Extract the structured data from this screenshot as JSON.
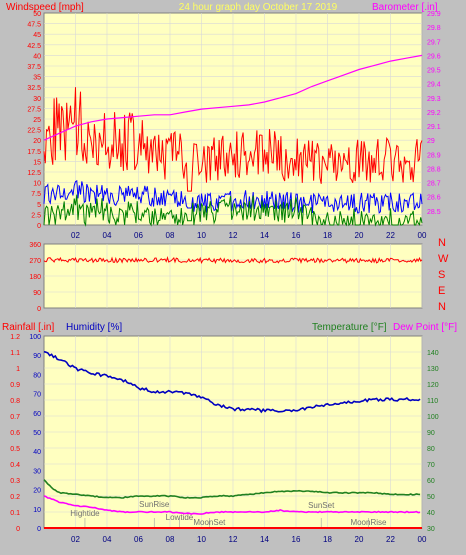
{
  "header": {
    "wind_label": "Windspeed [mph]",
    "center_title": "24 hour graph day   October 17 2019",
    "baro_label": "Barometer [.in]"
  },
  "colors": {
    "plot_bg": "#ffffc0",
    "grid": "#d8d8d8",
    "wind_gust": "#ff0000",
    "wind_avg": "#0000ff",
    "wind_low": "#008000",
    "barometer": "#ff00ff",
    "wind_dir": "#ff0000",
    "humidity": "#0000c0",
    "temperature": "#208020",
    "dewpoint": "#ff00ff",
    "rainfall": "#ff0000",
    "title_yellow": "#ffff60",
    "chart_text": "#ff0000",
    "tick_text": "#000080"
  },
  "chart_data": [
    {
      "id": "wind_baro",
      "type": "line",
      "title": "24 hour graph day   October 17 2019",
      "xlabel": "",
      "ylabel": "Windspeed [mph]",
      "y2label": "Barometer [.in]",
      "xlim": [
        0,
        24
      ],
      "ylim": [
        0,
        50
      ],
      "y2lim": [
        28.4,
        29.9
      ],
      "grid": true,
      "x_tick_labels": [
        "02",
        "04",
        "06",
        "08",
        "10",
        "12",
        "14",
        "16",
        "18",
        "20",
        "22",
        "00"
      ],
      "y_tick_labels": [
        "0",
        "2.5",
        "5",
        "7.5",
        "10",
        "12.5",
        "15",
        "17.5",
        "20",
        "22.5",
        "25",
        "27.5",
        "30",
        "32.5",
        "35",
        "37.5",
        "40",
        "42.5",
        "45",
        "47.5",
        "50"
      ],
      "y2_tick_labels": [
        "28.5",
        "28.6",
        "28.7",
        "28.8",
        "28.9",
        "29",
        "29.1",
        "29.2",
        "29.3",
        "29.4",
        "29.5",
        "29.6",
        "29.7",
        "29.8",
        "29.9"
      ],
      "series": [
        {
          "name": "Windspeed",
          "points": [
            [
              0,
              20
            ],
            [
              2,
              22
            ],
            [
              4,
              18
            ],
            [
              6,
              19
            ],
            [
              8,
              15
            ],
            [
              10,
              14
            ],
            [
              12,
              15
            ],
            [
              14,
              16
            ],
            [
              16,
              14
            ],
            [
              18,
              13
            ],
            [
              20,
              14
            ],
            [
              22,
              14
            ],
            [
              24,
              14
            ]
          ]
        },
        {
          "name": "Barometer",
          "points": [
            [
              0,
              29.0
            ],
            [
              1,
              29.05
            ],
            [
              2,
              29.1
            ],
            [
              3,
              29.13
            ],
            [
              4,
              29.15
            ],
            [
              5,
              29.16
            ],
            [
              6,
              29.17
            ],
            [
              7,
              29.18
            ],
            [
              8,
              29.18
            ],
            [
              9,
              29.2
            ],
            [
              10,
              29.22
            ],
            [
              11,
              29.23
            ],
            [
              12,
              29.24
            ],
            [
              13,
              29.25
            ],
            [
              14,
              29.27
            ],
            [
              15,
              29.3
            ],
            [
              16,
              29.33
            ],
            [
              17,
              29.38
            ],
            [
              18,
              29.42
            ],
            [
              19,
              29.46
            ],
            [
              20,
              29.5
            ],
            [
              21,
              29.53
            ],
            [
              22,
              29.56
            ],
            [
              23,
              29.58
            ],
            [
              24,
              29.6
            ]
          ]
        }
      ]
    },
    {
      "id": "wind_direction",
      "type": "line",
      "xlim": [
        0,
        24
      ],
      "ylim": [
        0,
        360
      ],
      "grid": true,
      "x_tick_labels": [
        "02",
        "04",
        "06",
        "08",
        "10",
        "12",
        "14",
        "16",
        "18",
        "20",
        "22",
        "00"
      ],
      "y_tick_labels": [
        "0",
        "90",
        "180",
        "270",
        "360"
      ],
      "compass_labels": [
        "N",
        "W",
        "S",
        "E",
        "N"
      ],
      "series": [
        {
          "points": [
            [
              0,
              270
            ],
            [
              4,
              268
            ],
            [
              8,
              270
            ],
            [
              12,
              266
            ],
            [
              16,
              268
            ],
            [
              20,
              266
            ],
            [
              24,
              268
            ]
          ]
        }
      ]
    },
    {
      "id": "temp_hum",
      "type": "line",
      "xlim": [
        0,
        24
      ],
      "grid": true,
      "rain_label": "Rainfall [.in]",
      "humidity_label": "Humidity [%]",
      "temp_label": "Temperature [°F]",
      "dewpoint_label": "Dew Point [°F]",
      "rain_ylim": [
        0,
        1.2
      ],
      "humidity_ylim": [
        0,
        100
      ],
      "temp_ylim": [
        30,
        150
      ],
      "x_tick_labels": [
        "02",
        "04",
        "06",
        "08",
        "10",
        "12",
        "14",
        "16",
        "18",
        "20",
        "22",
        "00"
      ],
      "rain_tick_labels": [
        "0",
        "0.1",
        "0.2",
        "0.3",
        "0.4",
        "0.5",
        "0.6",
        "0.7",
        "0.8",
        "0.9",
        "1",
        "1.1",
        "1.2"
      ],
      "humidity_tick_labels": [
        "0",
        "10",
        "20",
        "30",
        "40",
        "50",
        "60",
        "70",
        "80",
        "90",
        "100"
      ],
      "temp_tick_labels": [
        "30",
        "40",
        "50",
        "60",
        "70",
        "80",
        "90",
        "100",
        "110",
        "120",
        "130",
        "140"
      ],
      "events": [
        {
          "label": "Hightide",
          "x": 2.6
        },
        {
          "label": "SunRise",
          "x": 7.0
        },
        {
          "label": "Lowtide",
          "x": 8.6
        },
        {
          "label": "MoonSet",
          "x": 10.5
        },
        {
          "label": "SunSet",
          "x": 17.6
        },
        {
          "label": "MoonRise",
          "x": 20.6
        }
      ],
      "series": [
        {
          "name": "Humidity [%]",
          "axis": "humidity",
          "points": [
            [
              0,
              92
            ],
            [
              1,
              88
            ],
            [
              2,
              83
            ],
            [
              3,
              81
            ],
            [
              4,
              79
            ],
            [
              5,
              77
            ],
            [
              6,
              73
            ],
            [
              7,
              71
            ],
            [
              8,
              71
            ],
            [
              9,
              70
            ],
            [
              10,
              68
            ],
            [
              11,
              64
            ],
            [
              12,
              62
            ],
            [
              13,
              62
            ],
            [
              14,
              61
            ],
            [
              15,
              61
            ],
            [
              16,
              61
            ],
            [
              17,
              63
            ],
            [
              18,
              64
            ],
            [
              19,
              65
            ],
            [
              20,
              66
            ],
            [
              21,
              67
            ],
            [
              22,
              67
            ],
            [
              23,
              67
            ],
            [
              24,
              67
            ]
          ]
        },
        {
          "name": "Temperature [°F]",
          "axis": "temp",
          "points": [
            [
              0,
              60
            ],
            [
              0.5,
              55
            ],
            [
              1,
              52
            ],
            [
              2,
              51
            ],
            [
              3,
              50
            ],
            [
              4,
              49
            ],
            [
              5,
              49
            ],
            [
              6,
              50
            ],
            [
              7,
              50
            ],
            [
              8,
              50
            ],
            [
              9,
              49
            ],
            [
              10,
              49
            ],
            [
              11,
              50
            ],
            [
              12,
              50
            ],
            [
              13,
              51
            ],
            [
              14,
              52
            ],
            [
              15,
              53
            ],
            [
              16,
              53
            ],
            [
              17,
              53
            ],
            [
              18,
              52
            ],
            [
              19,
              52
            ],
            [
              20,
              52
            ],
            [
              21,
              52
            ],
            [
              22,
              51
            ],
            [
              24,
              51
            ]
          ]
        },
        {
          "name": "Dew Point [°F]",
          "axis": "temp",
          "points": [
            [
              0,
              50
            ],
            [
              1,
              46
            ],
            [
              2,
              44
            ],
            [
              3,
              43
            ],
            [
              4,
              41
            ],
            [
              5,
              40
            ],
            [
              6,
              40
            ],
            [
              7,
              40
            ],
            [
              8,
              40
            ],
            [
              9,
              39
            ],
            [
              10,
              39
            ],
            [
              11,
              40
            ],
            [
              12,
              40
            ],
            [
              13,
              40
            ],
            [
              14,
              40
            ],
            [
              15,
              41
            ],
            [
              16,
              40
            ],
            [
              17,
              40
            ],
            [
              18,
              40
            ],
            [
              19,
              40
            ],
            [
              20,
              40
            ],
            [
              21,
              40
            ],
            [
              22,
              40
            ],
            [
              24,
              40
            ]
          ]
        },
        {
          "name": "Rainfall [.in]",
          "axis": "rain",
          "points": [
            [
              0,
              0
            ],
            [
              24,
              0
            ]
          ]
        }
      ]
    }
  ]
}
